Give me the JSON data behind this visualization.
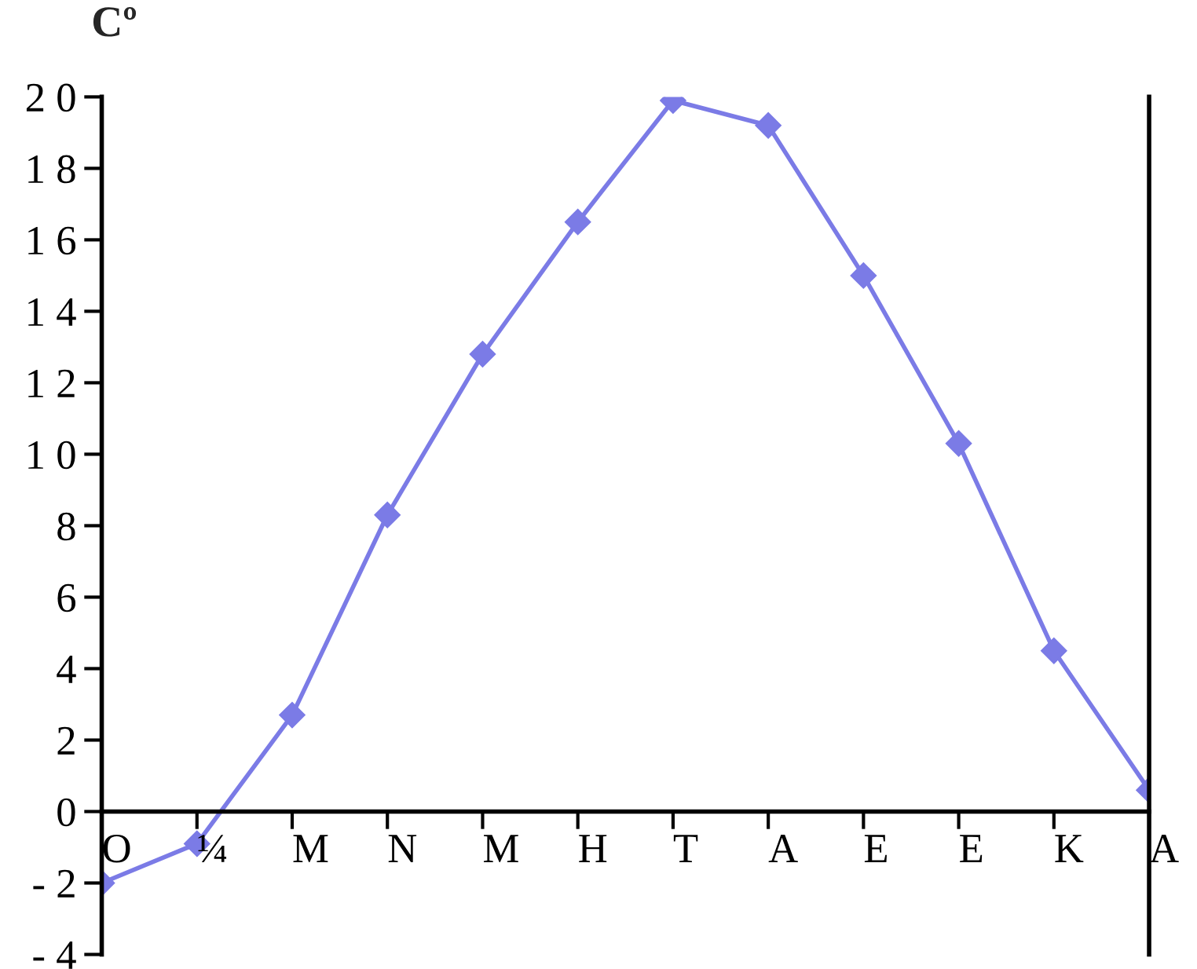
{
  "chart_data": {
    "type": "line",
    "ylabel": "Cº",
    "categories": [
      "O",
      "¼",
      "M",
      "N",
      "M",
      "H",
      "T",
      "A",
      "E",
      "E",
      "K",
      "A"
    ],
    "series": [
      {
        "color": "#7b7be6",
        "values": [
          -2.0,
          -0.9,
          2.7,
          8.3,
          12.8,
          16.5,
          19.9,
          19.2,
          15.0,
          10.3,
          4.5,
          0.6
        ]
      }
    ],
    "ylim": [
      -4,
      20
    ],
    "yticks": [
      {
        "value": -4,
        "label": "- 4"
      },
      {
        "value": -2,
        "label": "- 2"
      },
      {
        "value": 0,
        "label": "0"
      },
      {
        "value": 2,
        "label": "2"
      },
      {
        "value": 4,
        "label": "4"
      },
      {
        "value": 6,
        "label": "6"
      },
      {
        "value": 8,
        "label": "8"
      },
      {
        "value": 10,
        "label": "1 0"
      },
      {
        "value": 12,
        "label": "1 2"
      },
      {
        "value": 14,
        "label": "1 4"
      },
      {
        "value": 16,
        "label": "1 6"
      },
      {
        "value": 18,
        "label": "1 8"
      },
      {
        "value": 20,
        "label": "2 0"
      }
    ],
    "grid": false,
    "marker": "diamond",
    "line_style": "solid"
  }
}
